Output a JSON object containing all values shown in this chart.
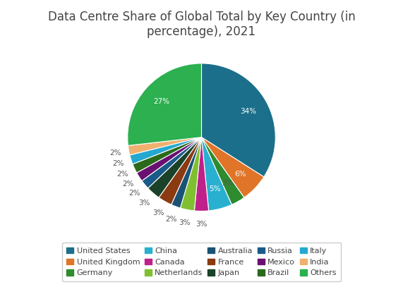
{
  "title": "Data Centre Share of Global Total by Key Country (in\npercentage), 2021",
  "labels": [
    "United States",
    "United Kingdom",
    "Germany",
    "China",
    "Canada",
    "Netherlands",
    "Australia",
    "France",
    "Japan",
    "Russia",
    "Mexico",
    "Brazil",
    "Italy",
    "India",
    "Others"
  ],
  "values": [
    33,
    6,
    3,
    5,
    3,
    3,
    2,
    3,
    3,
    2,
    2,
    2,
    2,
    2,
    26
  ],
  "colors": [
    "#1b6f8a",
    "#e07428",
    "#2e8b2e",
    "#29b0d0",
    "#c0208a",
    "#80c030",
    "#1a5276",
    "#8b3a12",
    "#1a4228",
    "#1a5a88",
    "#6a1070",
    "#2a6a1a",
    "#25a8d0",
    "#f0b070",
    "#2cb050"
  ],
  "background_color": "#ffffff",
  "title_fontsize": 12,
  "legend_fontsize": 8
}
